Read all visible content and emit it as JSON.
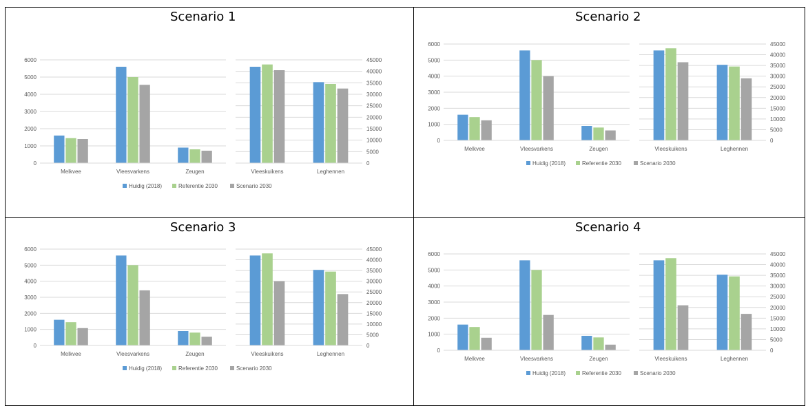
{
  "colors": {
    "huidig": "#5b9bd5",
    "referentie": "#a9d18e",
    "scenario": "#a5a5a5",
    "grid": "#d9d9d9",
    "axis": "#595959"
  },
  "legend": [
    "Huidig (2018)",
    "Referentie 2030",
    "Scenario 2030"
  ],
  "left_ticks": [
    "0",
    "1000",
    "2000",
    "3000",
    "4000",
    "5000",
    "6000"
  ],
  "right_ticks": [
    "0",
    "5000",
    "10000",
    "15000",
    "20000",
    "25000",
    "30000",
    "35000",
    "40000",
    "45000"
  ],
  "panels": [
    {
      "title": "Scenario 1"
    },
    {
      "title": "Scenario 2"
    },
    {
      "title": "Scenario 3"
    },
    {
      "title": "Scenario 4"
    }
  ],
  "chart_data": [
    {
      "type": "bar",
      "title": "Scenario 1",
      "left": {
        "categories": [
          "Melkvee",
          "Vleesvarkens",
          "Zeugen"
        ],
        "ylim": [
          0,
          6000
        ],
        "series": [
          {
            "name": "Huidig (2018)",
            "values": [
              1600,
              5600,
              900
            ]
          },
          {
            "name": "Referentie 2030",
            "values": [
              1450,
              5000,
              800
            ]
          },
          {
            "name": "Scenario 2030",
            "values": [
              1400,
              4550,
              720
            ]
          }
        ]
      },
      "right": {
        "categories": [
          "Vleeskuikens",
          "Leghennen"
        ],
        "ylim": [
          0,
          45000
        ],
        "series": [
          {
            "name": "Huidig (2018)",
            "values": [
              42000,
              35300
            ]
          },
          {
            "name": "Referentie 2030",
            "values": [
              43000,
              34500
            ]
          },
          {
            "name": "Scenario 2030",
            "values": [
              40500,
              32500
            ]
          }
        ]
      }
    },
    {
      "type": "bar",
      "title": "Scenario 2",
      "left": {
        "categories": [
          "Melkvee",
          "Vleesvarkens",
          "Zeugen"
        ],
        "ylim": [
          0,
          6000
        ],
        "series": [
          {
            "name": "Huidig (2018)",
            "values": [
              1600,
              5600,
              900
            ]
          },
          {
            "name": "Referentie 2030",
            "values": [
              1450,
              5000,
              800
            ]
          },
          {
            "name": "Scenario 2030",
            "values": [
              1250,
              4000,
              620
            ]
          }
        ]
      },
      "right": {
        "categories": [
          "Vleeskuikens",
          "Leghennen"
        ],
        "ylim": [
          0,
          45000
        ],
        "series": [
          {
            "name": "Huidig (2018)",
            "values": [
              42000,
              35300
            ]
          },
          {
            "name": "Referentie 2030",
            "values": [
              43000,
              34500
            ]
          },
          {
            "name": "Scenario 2030",
            "values": [
              36500,
              29000
            ]
          }
        ]
      }
    },
    {
      "type": "bar",
      "title": "Scenario 3",
      "left": {
        "categories": [
          "Melkvee",
          "Vleesvarkens",
          "Zeugen"
        ],
        "ylim": [
          0,
          6000
        ],
        "series": [
          {
            "name": "Huidig (2018)",
            "values": [
              1600,
              5600,
              900
            ]
          },
          {
            "name": "Referentie 2030",
            "values": [
              1450,
              5000,
              800
            ]
          },
          {
            "name": "Scenario 2030",
            "values": [
              1080,
              3430,
              540
            ]
          }
        ]
      },
      "right": {
        "categories": [
          "Vleeskuikens",
          "Leghennen"
        ],
        "ylim": [
          0,
          45000
        ],
        "series": [
          {
            "name": "Huidig (2018)",
            "values": [
              42000,
              35300
            ]
          },
          {
            "name": "Referentie 2030",
            "values": [
              43000,
              34500
            ]
          },
          {
            "name": "Scenario 2030",
            "values": [
              30000,
              24000
            ]
          }
        ]
      }
    },
    {
      "type": "bar",
      "title": "Scenario 4",
      "left": {
        "categories": [
          "Melkvee",
          "Vleesvarkens",
          "Zeugen"
        ],
        "ylim": [
          0,
          6000
        ],
        "series": [
          {
            "name": "Huidig (2018)",
            "values": [
              1600,
              5600,
              900
            ]
          },
          {
            "name": "Referentie 2030",
            "values": [
              1450,
              5000,
              800
            ]
          },
          {
            "name": "Scenario 2030",
            "values": [
              780,
              2200,
              350
            ]
          }
        ]
      },
      "right": {
        "categories": [
          "Vleeskuikens",
          "Leghennen"
        ],
        "ylim": [
          0,
          45000
        ],
        "series": [
          {
            "name": "Huidig (2018)",
            "values": [
              42000,
              35300
            ]
          },
          {
            "name": "Referentie 2030",
            "values": [
              43000,
              34500
            ]
          },
          {
            "name": "Scenario 2030",
            "values": [
              21000,
              17000
            ]
          }
        ]
      }
    }
  ]
}
